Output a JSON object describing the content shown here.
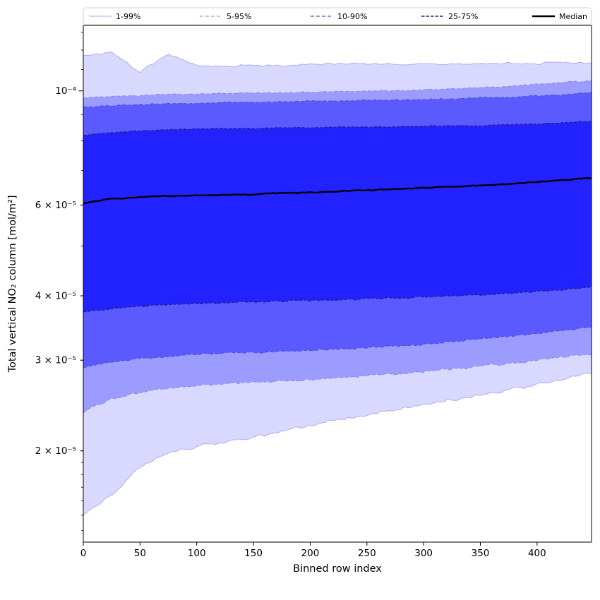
{
  "figure": {
    "background": "#ffffff",
    "band_color": "#0000ff",
    "median_color": "#000000",
    "spine_color": "#000000"
  },
  "legend": {
    "items": [
      {
        "label": "1-99%",
        "color": "#a8a8f6",
        "width": 0.9,
        "dash": ""
      },
      {
        "label": "5-95%",
        "color": "#8585f0",
        "width": 1.0,
        "dash": "5,3"
      },
      {
        "label": "10-90%",
        "color": "#5050d8",
        "width": 1.2,
        "dash": "5,3"
      },
      {
        "label": "25-75%",
        "color": "#20209a",
        "width": 1.6,
        "dash": "4.5,2"
      },
      {
        "label": "Median",
        "color": "#000000",
        "width": 2.6,
        "dash": ""
      }
    ]
  },
  "chart_data": {
    "type": "area",
    "title": "",
    "xlabel": "Binned row index",
    "ylabel": "Total vertical NO₂ column [mol/m²]",
    "yscale": "log",
    "grid": false,
    "legend_position": "top",
    "xlim": [
      0,
      448
    ],
    "ylim": [
      1.33e-05,
      0.000134
    ],
    "xticks": [
      0,
      50,
      100,
      150,
      200,
      250,
      300,
      350,
      400
    ],
    "yticks": [
      {
        "value": 2e-05,
        "label": "2 × 10⁻⁵",
        "major": false
      },
      {
        "value": 3e-05,
        "label": "3 × 10⁻⁵",
        "major": false
      },
      {
        "value": 4e-05,
        "label": "4 × 10⁻⁵",
        "major": false
      },
      {
        "value": 6e-05,
        "label": "6 × 10⁻⁵",
        "major": false
      },
      {
        "value": 0.0001,
        "label": "10⁻⁴",
        "major": true
      }
    ],
    "x": [
      0,
      25,
      50,
      75,
      100,
      125,
      150,
      175,
      200,
      225,
      250,
      275,
      300,
      325,
      350,
      375,
      400,
      425,
      448
    ],
    "series": [
      {
        "name": "p1",
        "percentile": 1,
        "noise": 0.013,
        "values": [
          1.5e-05,
          1.64e-05,
          1.86e-05,
          1.98e-05,
          2.04e-05,
          2.08e-05,
          2.13e-05,
          2.18e-05,
          2.24e-05,
          2.3e-05,
          2.35e-05,
          2.4e-05,
          2.46e-05,
          2.51e-05,
          2.57e-05,
          2.63e-05,
          2.69e-05,
          2.76e-05,
          2.83e-05
        ]
      },
      {
        "name": "p5",
        "percentile": 5,
        "noise": 0.009,
        "values": [
          2.38e-05,
          2.52e-05,
          2.6e-05,
          2.65e-05,
          2.68e-05,
          2.7e-05,
          2.72e-05,
          2.73e-05,
          2.75e-05,
          2.77e-05,
          2.8e-05,
          2.82e-05,
          2.85e-05,
          2.88e-05,
          2.92e-05,
          2.95e-05,
          3e-05,
          3.05e-05,
          3.09e-05
        ]
      },
      {
        "name": "p10",
        "percentile": 10,
        "noise": 0.007,
        "values": [
          2.9e-05,
          2.98e-05,
          3.02e-05,
          3.05e-05,
          3.08e-05,
          3.1e-05,
          3.1e-05,
          3.12e-05,
          3.13e-05,
          3.15e-05,
          3.17e-05,
          3.2e-05,
          3.22e-05,
          3.26e-05,
          3.3e-05,
          3.34e-05,
          3.38e-05,
          3.43e-05,
          3.47e-05
        ]
      },
      {
        "name": "p25",
        "percentile": 25,
        "noise": 0.006,
        "values": [
          3.72e-05,
          3.78e-05,
          3.82e-05,
          3.85e-05,
          3.87e-05,
          3.88e-05,
          3.9e-05,
          3.9e-05,
          3.92e-05,
          3.93e-05,
          3.95e-05,
          3.96e-05,
          3.98e-05,
          4e-05,
          4.02e-05,
          4.05e-05,
          4.08e-05,
          4.12e-05,
          4.16e-05
        ]
      },
      {
        "name": "median",
        "percentile": 50,
        "noise": 0.004,
        "values": [
          6.05e-05,
          6.18e-05,
          6.22e-05,
          6.25e-05,
          6.26e-05,
          6.28e-05,
          6.3e-05,
          6.33e-05,
          6.35e-05,
          6.38e-05,
          6.42e-05,
          6.45e-05,
          6.48e-05,
          6.52e-05,
          6.55e-05,
          6.6e-05,
          6.65e-05,
          6.72e-05,
          6.78e-05
        ]
      },
      {
        "name": "p75",
        "percentile": 75,
        "noise": 0.004,
        "values": [
          8.2e-05,
          8.3e-05,
          8.35e-05,
          8.4e-05,
          8.42e-05,
          8.45e-05,
          8.45e-05,
          8.47e-05,
          8.48e-05,
          8.5e-05,
          8.5e-05,
          8.52e-05,
          8.53e-05,
          8.55e-05,
          8.55e-05,
          8.6e-05,
          8.62e-05,
          8.68e-05,
          8.72e-05
        ]
      },
      {
        "name": "p90",
        "percentile": 90,
        "noise": 0.005,
        "values": [
          9.3e-05,
          9.35e-05,
          9.4e-05,
          9.45e-05,
          9.45e-05,
          9.5e-05,
          9.5e-05,
          9.52e-05,
          9.55e-05,
          9.55e-05,
          9.6e-05,
          9.6e-05,
          9.62e-05,
          9.65e-05,
          9.7e-05,
          9.72e-05,
          9.78e-05,
          9.85e-05,
          9.9e-05
        ]
      },
      {
        "name": "p95",
        "percentile": 95,
        "noise": 0.005,
        "values": [
          9.7e-05,
          9.75e-05,
          9.8e-05,
          9.85e-05,
          9.85e-05,
          9.9e-05,
          9.9e-05,
          9.92e-05,
          9.95e-05,
          9.98e-05,
          0.0001,
          0.0001,
          0.0001005,
          0.000101,
          0.0001015,
          0.000102,
          0.000103,
          0.000104,
          0.0001045
        ]
      },
      {
        "name": "p99",
        "percentile": 99,
        "noise": 0.009,
        "values": [
          0.000117,
          0.0001185,
          0.000109,
          0.000118,
          0.000112,
          0.0001115,
          0.000112,
          0.000112,
          0.0001125,
          0.000113,
          0.000113,
          0.0001125,
          0.000113,
          0.0001125,
          0.000113,
          0.000113,
          0.000113,
          0.0001135,
          0.0001135
        ]
      }
    ],
    "bands": [
      {
        "label": "1-99%",
        "lower": "p1",
        "upper": "p99",
        "fill": "rgba(0,0,255,0.15)",
        "edge": "#a8a8f6",
        "edge_width": 0.9,
        "dash": ""
      },
      {
        "label": "5-95%",
        "lower": "p5",
        "upper": "p95",
        "fill": "rgba(0,0,255,0.28)",
        "edge": "#8585f0",
        "edge_width": 1.0,
        "dash": "5,3"
      },
      {
        "label": "10-90%",
        "lower": "p10",
        "upper": "p90",
        "fill": "rgba(0,0,255,0.42)",
        "edge": "#5050d8",
        "edge_width": 1.2,
        "dash": "5,3"
      },
      {
        "label": "25-75%",
        "lower": "p25",
        "upper": "p75",
        "fill": "rgba(0,0,255,0.62)",
        "edge": "#20209a",
        "edge_width": 1.5,
        "dash": "4.5,2"
      }
    ],
    "median_series": "median",
    "median_width": 2.4
  }
}
